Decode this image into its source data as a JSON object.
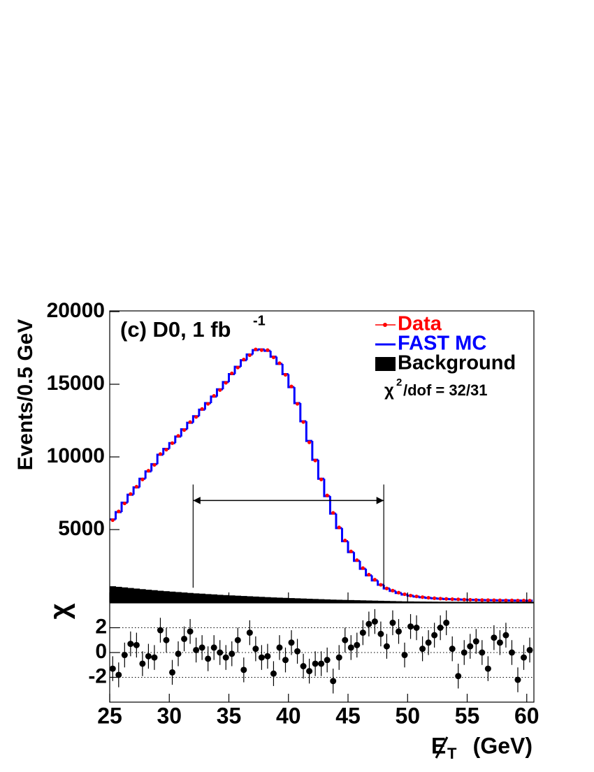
{
  "chart_data": [
    {
      "type": "histogram",
      "title": "(c) D0, 1 fb",
      "title_superscript": "-1",
      "y_label": "Events/0.5 GeV",
      "annotation": {
        "symbol": "χ",
        "superscript": "2",
        "text": "/dof = 32/31"
      },
      "range_marker": {
        "x": [
          32,
          48
        ],
        "y": 7000,
        "y_bottom": 1000,
        "y_top": 8100
      },
      "bins": [
        25,
        25.5,
        26,
        26.5,
        27,
        27.5,
        28,
        28.5,
        29,
        29.5,
        30,
        30.5,
        31,
        31.5,
        32,
        32.5,
        33,
        33.5,
        34,
        34.5,
        35,
        35.5,
        36,
        36.5,
        37,
        37.5,
        38,
        38.5,
        39,
        39.5,
        40,
        40.5,
        41,
        41.5,
        42,
        42.5,
        43,
        43.5,
        44,
        44.5,
        45,
        45.5,
        46,
        46.5,
        47,
        47.5,
        48,
        48.5,
        49,
        49.5,
        50,
        50.5,
        51,
        51.5,
        52,
        52.5,
        53,
        53.5,
        54,
        54.5,
        55,
        55.5,
        56,
        56.5,
        57,
        57.5,
        58,
        58.5,
        59,
        59.5,
        60,
        60.5
      ],
      "series": [
        {
          "name": "Data",
          "color": "#ff0000",
          "style": "points",
          "values": [
            5650,
            6250,
            6800,
            7450,
            7950,
            8450,
            9050,
            9450,
            10200,
            10500,
            10950,
            11450,
            11850,
            12400,
            12750,
            13300,
            13650,
            14200,
            14600,
            15100,
            15750,
            16150,
            16700,
            17000,
            17400,
            17350,
            17350,
            16850,
            16450,
            15650,
            14850,
            13650,
            12400,
            11000,
            9750,
            8450,
            7350,
            6150,
            5150,
            4250,
            3500,
            2900,
            2350,
            1900,
            1550,
            1200,
            950,
            800,
            660,
            550,
            460,
            400,
            350,
            310,
            275,
            250,
            230,
            210,
            200,
            180,
            170,
            160,
            150,
            145,
            140,
            135,
            130,
            125,
            118,
            115,
            110
          ]
        },
        {
          "name": "FAST MC",
          "color": "#0000ff",
          "style": "step",
          "values": [
            5700,
            6200,
            6850,
            7400,
            7900,
            8500,
            9000,
            9500,
            10150,
            10550,
            10950,
            11400,
            11900,
            12350,
            12800,
            13250,
            13700,
            14150,
            14650,
            15150,
            15700,
            16200,
            16650,
            17050,
            17350,
            17400,
            17300,
            16900,
            16400,
            15700,
            14800,
            13700,
            12450,
            11100,
            9800,
            8500,
            7300,
            6100,
            5100,
            4200,
            3450,
            2850,
            2300,
            1850,
            1500,
            1200,
            950,
            780,
            640,
            530,
            450,
            390,
            340,
            300,
            270,
            245,
            225,
            210,
            195,
            180,
            170,
            160,
            150,
            145,
            140,
            135,
            130,
            125,
            120,
            115,
            110
          ]
        },
        {
          "name": "Background",
          "color": "#000000",
          "style": "filled",
          "values": [
            1100,
            1060,
            1020,
            980,
            940,
            900,
            860,
            830,
            790,
            760,
            730,
            700,
            670,
            640,
            610,
            590,
            560,
            540,
            510,
            490,
            470,
            450,
            430,
            410,
            390,
            370,
            350,
            330,
            315,
            300,
            285,
            270,
            255,
            240,
            225,
            210,
            195,
            180,
            170,
            160,
            150,
            140,
            130,
            120,
            110,
            100,
            90,
            80,
            70,
            60,
            55,
            50,
            45,
            40,
            35,
            30,
            28,
            26,
            24,
            22,
            20,
            18,
            16,
            14,
            12,
            10,
            9,
            8,
            7,
            6,
            5
          ]
        }
      ],
      "xlim": [
        25,
        60.6
      ],
      "ylim": [
        0,
        20000
      ],
      "yticks": [
        5000,
        10000,
        15000,
        20000
      ],
      "legend": "upper right"
    },
    {
      "type": "scatter",
      "y_label": "χ",
      "x_label": {
        "symbol": "E",
        "subscript": "T",
        "unit": "(GeV)"
      },
      "x": [
        25.25,
        25.75,
        26.25,
        26.75,
        27.25,
        27.75,
        28.25,
        28.75,
        29.25,
        29.75,
        30.25,
        30.75,
        31.25,
        31.75,
        32.25,
        32.75,
        33.25,
        33.75,
        34.25,
        34.75,
        35.25,
        35.75,
        36.25,
        36.75,
        37.25,
        37.75,
        38.25,
        38.75,
        39.25,
        39.75,
        40.25,
        40.75,
        41.25,
        41.75,
        42.25,
        42.75,
        43.25,
        43.75,
        44.25,
        44.75,
        45.25,
        45.75,
        46.25,
        46.75,
        47.25,
        47.75,
        48.25,
        48.75,
        49.25,
        49.75,
        50.25,
        50.75,
        51.25,
        51.75,
        52.25,
        52.75,
        53.25,
        53.75,
        54.25,
        54.75,
        55.25,
        55.75,
        56.25,
        56.75,
        57.25,
        57.75,
        58.25,
        58.75,
        59.25,
        59.75,
        60.25
      ],
      "values": [
        -1.3,
        -1.8,
        -0.2,
        0.7,
        0.6,
        -0.9,
        -0.3,
        -0.4,
        1.8,
        1,
        -1.6,
        -0.1,
        1.1,
        1.7,
        0.2,
        0.4,
        -0.5,
        0.4,
        0,
        -0.4,
        -0.1,
        1,
        -1.4,
        1.6,
        0.3,
        -0.4,
        -0.3,
        -1.7,
        0.4,
        -0.6,
        0.8,
        0.1,
        -1.1,
        -1.5,
        -0.9,
        -0.9,
        -0.6,
        -2.3,
        -0.4,
        1,
        0.4,
        0.6,
        1.6,
        2.3,
        2.5,
        1.5,
        0.5,
        2.4,
        1.7,
        -0.2,
        2.1,
        2,
        0.3,
        0.8,
        1.4,
        2,
        2.4,
        0.3,
        -1.9,
        0,
        0.5,
        0.9,
        0,
        -1.3,
        1.2,
        0.8,
        1.4,
        0,
        -2.2,
        -0.4,
        0.2
      ],
      "error": 1,
      "color": "#000000",
      "xlim": [
        25,
        60.6
      ],
      "ylim": [
        -4,
        4
      ],
      "yticks": [
        -2,
        0,
        2
      ],
      "xticks": [
        25,
        30,
        35,
        40,
        45,
        50,
        55,
        60
      ],
      "grid": true
    }
  ]
}
